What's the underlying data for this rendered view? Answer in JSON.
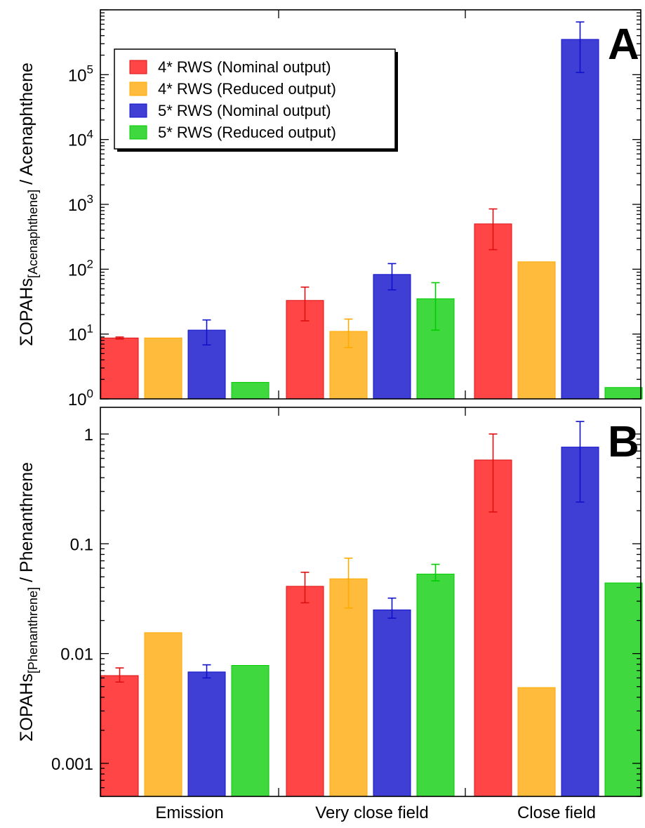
{
  "chart_data": {
    "type": "bar",
    "categories": [
      "Emission",
      "Very close field",
      "Close field"
    ],
    "series_names": [
      "4* RWS (Nominal output)",
      "4* RWS (Reduced output)",
      "5* RWS (Nominal output)",
      "5* RWS (Reduced output)"
    ],
    "colors": [
      "#ff4545",
      "#ffbb3c",
      "#3f3fd6",
      "#3fd93f"
    ],
    "error_colors": [
      "#dd1111",
      "#ffaa00",
      "#1111cc",
      "#00cc00"
    ],
    "legend_position": "top-left of panel A",
    "panels": [
      {
        "letter": "A",
        "ylabel_main": "ΣOPAHs",
        "ylabel_sub": "[Acenaphthene]",
        "ylabel_rest": " / Acenaphthene",
        "yscale": "log",
        "ylim": [
          1,
          1000000
        ],
        "major_ticks": [
          {
            "value": 1,
            "base": "10",
            "exp": "0"
          },
          {
            "value": 10,
            "base": "10",
            "exp": "1"
          },
          {
            "value": 100,
            "base": "10",
            "exp": "2"
          },
          {
            "value": 1000,
            "base": "10",
            "exp": "3"
          },
          {
            "value": 10000,
            "base": "10",
            "exp": "4"
          },
          {
            "value": 100000,
            "base": "10",
            "exp": "5"
          }
        ],
        "series": [
          {
            "name": "4* RWS (Nominal output)",
            "values": [
              8.7,
              33,
              500
            ],
            "err_low": [
              8.4,
              16,
              200
            ],
            "err_high": [
              9.0,
              53,
              850
            ]
          },
          {
            "name": "4* RWS (Reduced output)",
            "values": [
              8.7,
              11,
              130
            ],
            "err_low": [
              null,
              6.2,
              null
            ],
            "err_high": [
              null,
              17,
              null
            ]
          },
          {
            "name": "5* RWS (Nominal output)",
            "values": [
              11.5,
              83,
              350000
            ],
            "err_low": [
              6.8,
              48,
              108000
            ],
            "err_high": [
              16.5,
              122,
              650000
            ]
          },
          {
            "name": "5* RWS (Reduced output)",
            "values": [
              1.8,
              35,
              1.5
            ],
            "err_low": [
              null,
              11.5,
              null
            ],
            "err_high": [
              null,
              62,
              null
            ]
          }
        ]
      },
      {
        "letter": "B",
        "ylabel_main": "ΣOPAHs",
        "ylabel_sub": "[Phenanthrene]",
        "ylabel_rest": " / Phenanthrene",
        "yscale": "log",
        "ylim": [
          0.0005,
          1.75
        ],
        "major_ticks": [
          {
            "value": 0.001,
            "label": "0.001"
          },
          {
            "value": 0.01,
            "label": "0.01"
          },
          {
            "value": 0.1,
            "label": "0.1"
          },
          {
            "value": 1,
            "label": "1"
          }
        ],
        "series": [
          {
            "name": "4* RWS (Nominal output)",
            "values": [
              0.0063,
              0.041,
              0.58
            ],
            "err_low": [
              0.0055,
              0.029,
              0.195
            ],
            "err_high": [
              0.0074,
              0.055,
              1.0
            ]
          },
          {
            "name": "4* RWS (Reduced output)",
            "values": [
              0.0155,
              0.048,
              0.0049
            ],
            "err_low": [
              null,
              0.026,
              null
            ],
            "err_high": [
              null,
              0.074,
              null
            ]
          },
          {
            "name": "5* RWS (Nominal output)",
            "values": [
              0.0068,
              0.025,
              0.76
            ],
            "err_low": [
              0.006,
              0.021,
              0.24
            ],
            "err_high": [
              0.0079,
              0.032,
              1.3
            ]
          },
          {
            "name": "5* RWS (Reduced output)",
            "values": [
              0.0078,
              0.053,
              0.044
            ],
            "err_low": [
              null,
              0.046,
              null
            ],
            "err_high": [
              null,
              0.065,
              null
            ]
          }
        ]
      }
    ]
  }
}
